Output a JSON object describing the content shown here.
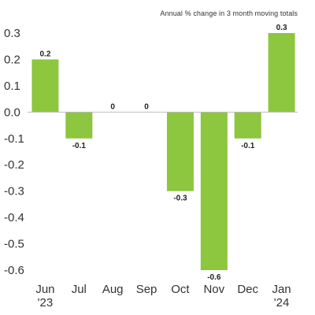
{
  "chart_data": {
    "type": "bar",
    "subtitle": "Annual % change in 3 month moving totals",
    "categories": [
      [
        "Jun",
        "'23"
      ],
      [
        "Jul"
      ],
      [
        "Aug"
      ],
      [
        "Sep"
      ],
      [
        "Oct"
      ],
      [
        "Nov"
      ],
      [
        "Dec"
      ],
      [
        "Jan",
        "'24"
      ]
    ],
    "values": [
      0.2,
      -0.1,
      0,
      0,
      -0.3,
      -0.6,
      -0.1,
      0.3
    ],
    "data_labels": [
      "0.2",
      "-0.1",
      "0",
      "0",
      "-0.3",
      "-0.6",
      "-0.1",
      "0.3"
    ],
    "yticks": [
      0.3,
      0.2,
      0.1,
      0.0,
      -0.1,
      -0.2,
      -0.3,
      -0.4,
      -0.5,
      -0.6
    ],
    "ytick_labels": [
      "0.3",
      "0.2",
      "0.1",
      "0.0",
      "-0.1",
      "-0.2",
      "-0.3",
      "-0.4",
      "-0.5",
      "-0.6"
    ],
    "ylim": [
      -0.6,
      0.3
    ],
    "bar_color": "#8dc63f",
    "axis_color": "#bbbbbb",
    "grid": false,
    "legend": "none"
  }
}
